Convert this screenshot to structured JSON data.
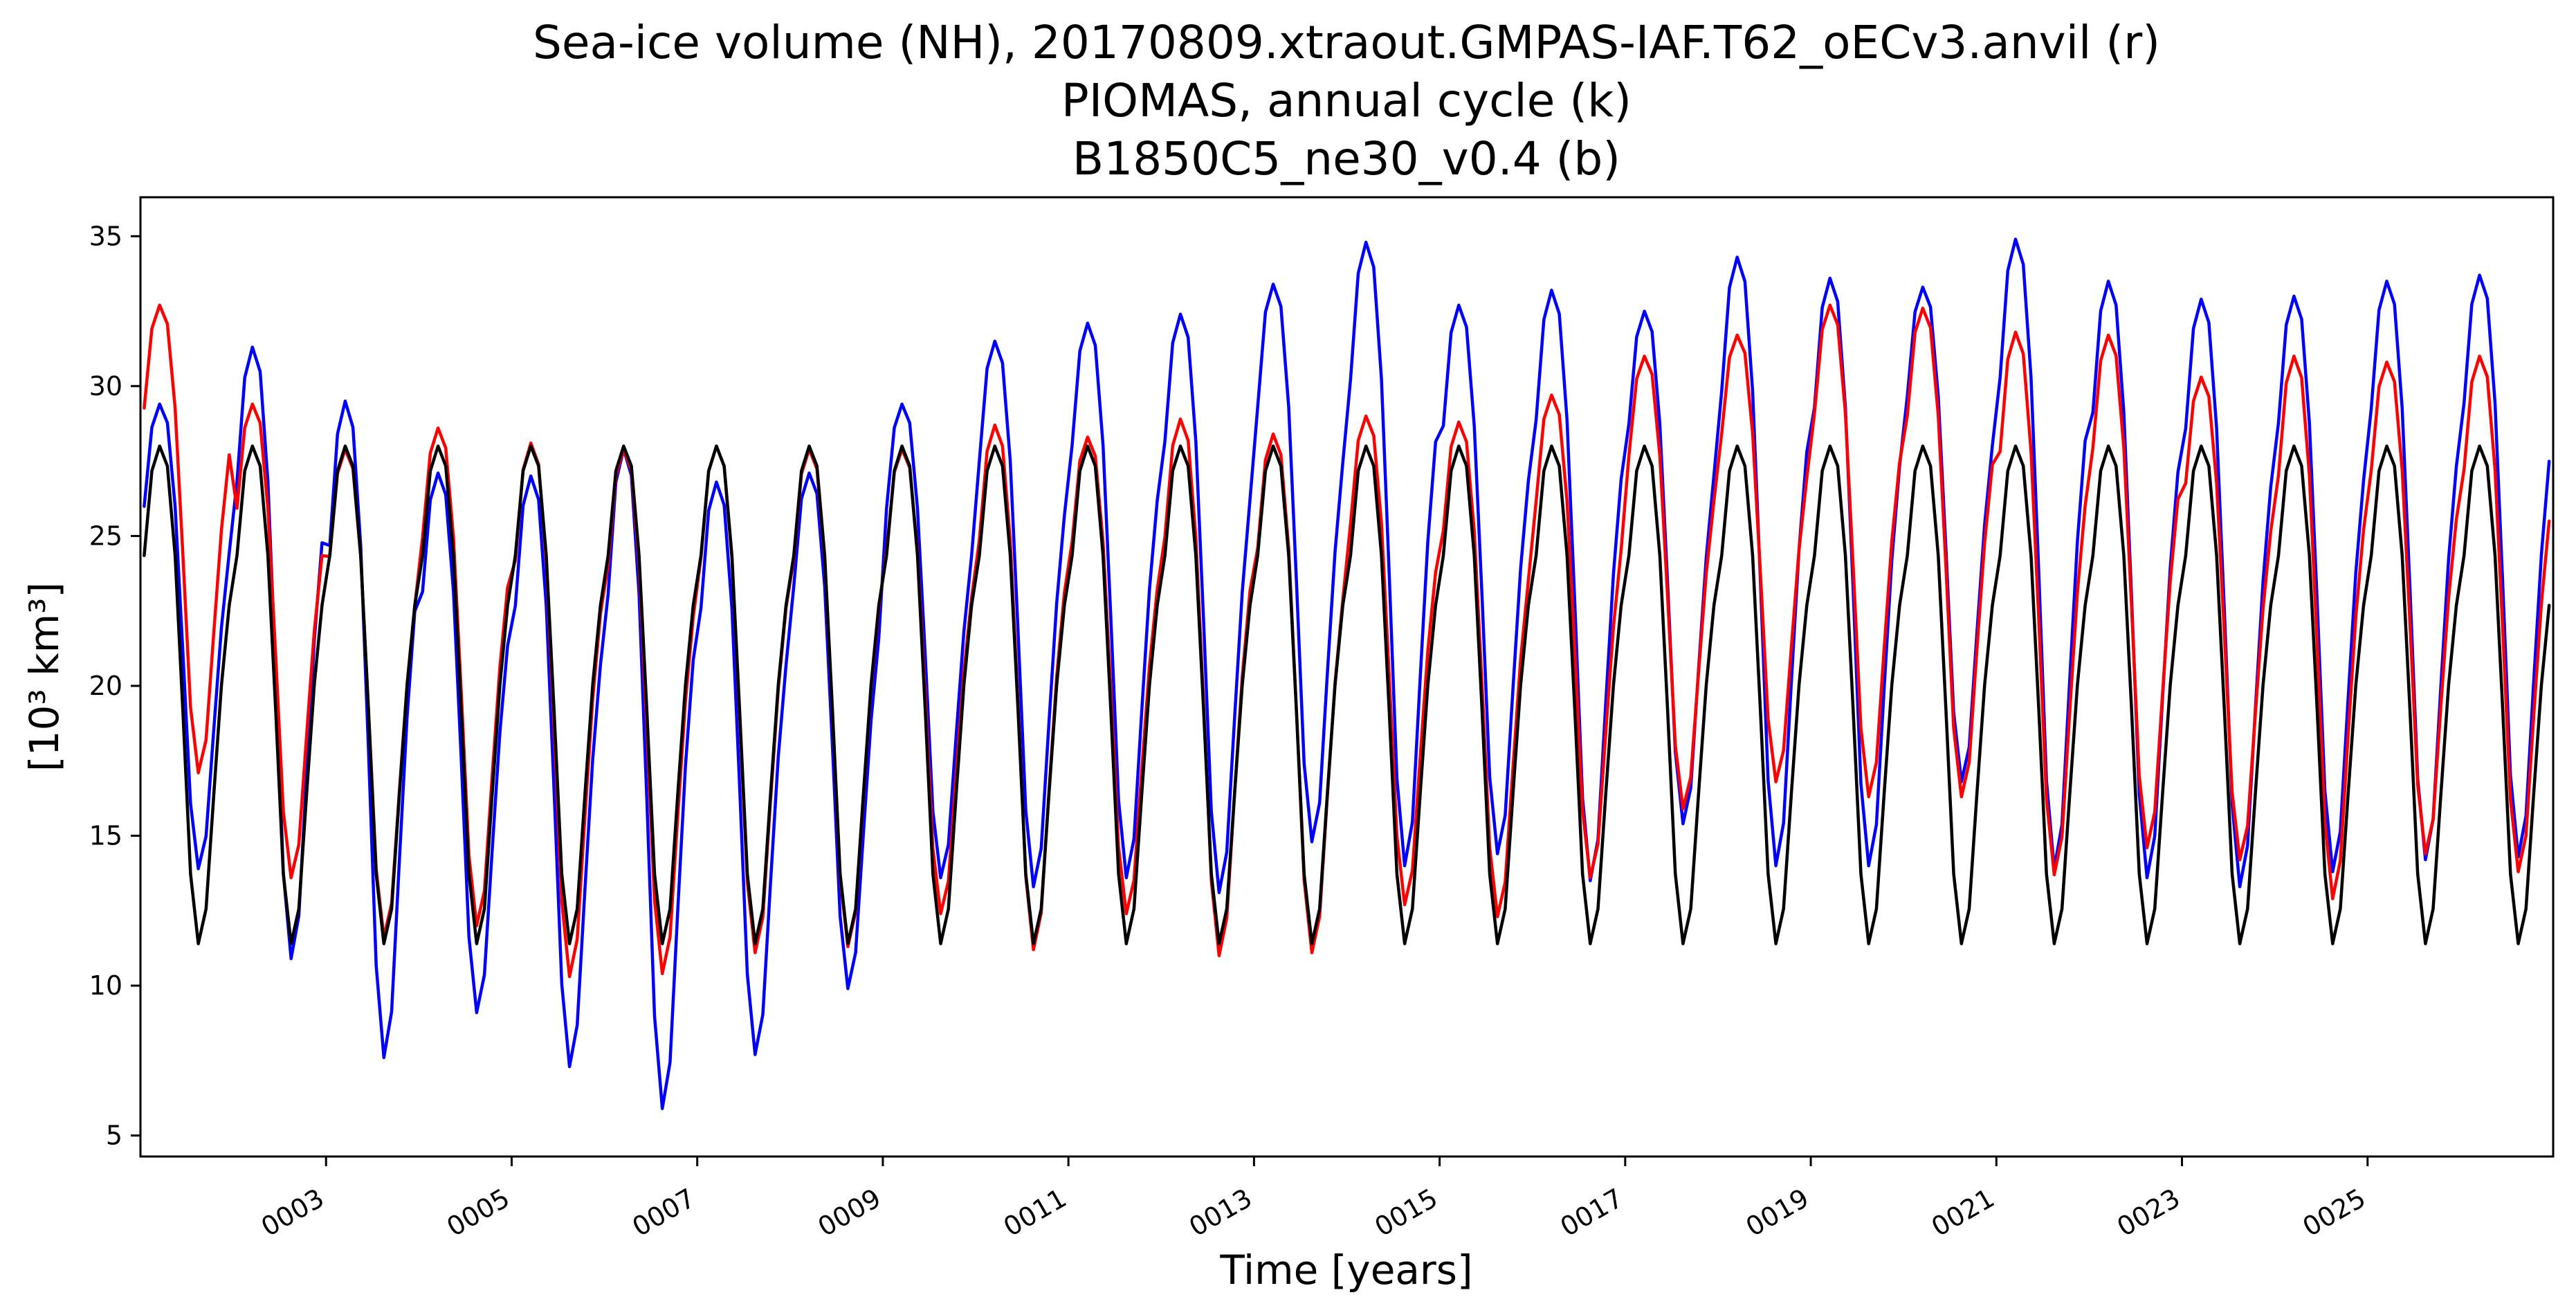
{
  "chart_data": {
    "type": "line",
    "title_lines": [
      "Sea-ice volume (NH), 20170809.xtraout.GMPAS-IAF.T62_oECv3.anvil (r)",
      "PIOMAS, annual cycle (k)",
      "B1850C5_ne30_v0.4 (b)"
    ],
    "xlabel": "Time [years]",
    "ylabel": "[10³ km³]",
    "xlim": [
      1.0,
      27.0
    ],
    "ylim": [
      4.3,
      36.3
    ],
    "x_ticks": [
      3,
      5,
      7,
      9,
      11,
      13,
      15,
      17,
      19,
      21,
      23,
      25
    ],
    "x_tick_labels": [
      "0003",
      "0005",
      "0007",
      "0009",
      "0011",
      "0013",
      "0015",
      "0017",
      "0019",
      "0021",
      "0023",
      "0025"
    ],
    "y_ticks": [
      5,
      10,
      15,
      20,
      25,
      30,
      35
    ],
    "y_tick_labels": [
      "5",
      "10",
      "15",
      "20",
      "25",
      "30",
      "35"
    ],
    "grid": false,
    "legend": "none",
    "x_start_year": 1.04,
    "monthly_profile": [
      0.78,
      0.95,
      1.0,
      0.96,
      0.78,
      0.47,
      0.14,
      0.0,
      0.07,
      0.3,
      0.52,
      0.68
    ],
    "series": [
      {
        "color": "#000000",
        "annual_max": [
          28.0,
          28.0,
          28.0,
          28.0,
          28.0,
          28.0,
          28.0,
          28.0,
          28.0,
          28.0,
          28.0,
          28.0,
          28.0,
          28.0,
          28.0,
          28.0,
          28.0,
          28.0,
          28.0,
          28.0,
          28.0,
          28.0,
          28.0,
          28.0,
          28.0,
          28.0
        ],
        "annual_min": [
          11.4,
          11.4,
          11.4,
          11.4,
          11.4,
          11.4,
          11.4,
          11.4,
          11.4,
          11.4,
          11.4,
          11.4,
          11.4,
          11.4,
          11.4,
          11.4,
          11.4,
          11.4,
          11.4,
          11.4,
          11.4,
          11.4,
          11.4,
          11.4,
          11.4,
          11.4
        ]
      },
      {
        "color": "#ff0000",
        "annual_max": [
          32.7,
          29.4,
          27.9,
          28.6,
          28.1,
          27.9,
          28.0,
          27.9,
          27.9,
          28.7,
          28.3,
          28.9,
          28.4,
          29.0,
          28.8,
          29.7,
          31.0,
          31.7,
          32.7,
          32.6,
          31.8,
          31.7,
          30.3,
          31.0,
          30.8,
          31.0
        ],
        "annual_min": [
          17.1,
          13.6,
          11.6,
          12.0,
          10.3,
          10.4,
          11.1,
          11.3,
          12.4,
          11.2,
          12.4,
          11.0,
          11.1,
          12.7,
          12.3,
          13.6,
          15.9,
          16.8,
          16.3,
          16.3,
          13.7,
          14.6,
          14.2,
          12.9,
          14.4,
          13.8
        ]
      },
      {
        "color": "#0000ff",
        "annual_max": [
          29.4,
          31.3,
          29.5,
          27.1,
          27.0,
          27.9,
          26.8,
          27.1,
          29.4,
          31.5,
          32.1,
          32.4,
          33.4,
          34.8,
          32.7,
          33.2,
          32.5,
          34.3,
          33.6,
          33.3,
          34.9,
          33.5,
          32.9,
          33.0,
          33.5,
          33.7
        ],
        "annual_min": [
          13.9,
          10.9,
          7.6,
          9.1,
          7.3,
          5.9,
          7.7,
          9.9,
          13.6,
          13.3,
          13.6,
          13.1,
          14.8,
          14.0,
          14.4,
          13.5,
          15.4,
          14.0,
          14.0,
          16.8,
          13.9,
          13.6,
          13.3,
          13.8,
          14.2,
          14.3
        ]
      }
    ]
  }
}
